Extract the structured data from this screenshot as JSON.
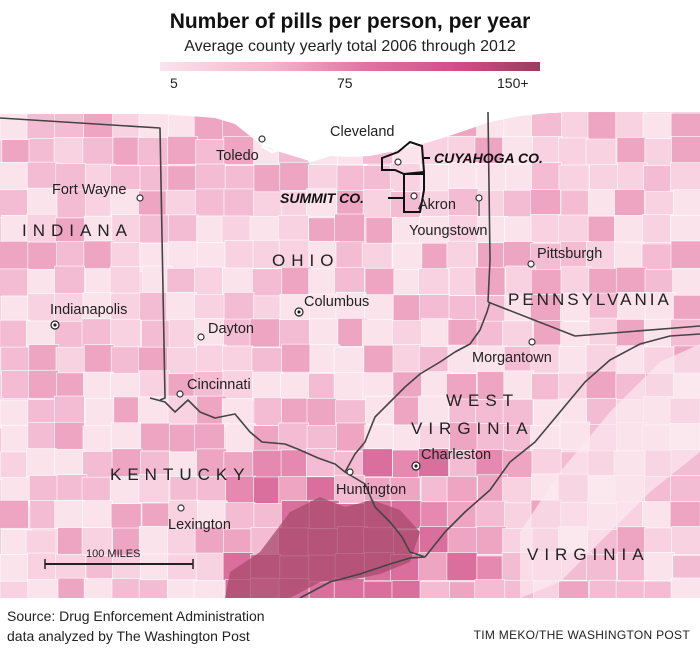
{
  "header": {
    "title": "Number of pills per person, per year",
    "subtitle": "Average county yearly total 2006 through 2012"
  },
  "legend": {
    "min_label": "5",
    "mid_label": "75",
    "max_label": "150+",
    "colors": [
      "#fbe3ec",
      "#f4b3c9",
      "#e270a2",
      "#cc4d86",
      "#9c3b5c"
    ]
  },
  "map": {
    "states": [
      "INDIANA",
      "OHIO",
      "PENNSYLVANIA",
      "WEST",
      "VIRGINIA",
      "KENTUCKY",
      "VIRGINIA"
    ],
    "cities": [
      "Toledo",
      "Cleveland",
      "Fort Wayne",
      "Akron",
      "Youngstown",
      "Pittsburgh",
      "Indianapolis",
      "Columbus",
      "Dayton",
      "Morgantown",
      "Cincinnati",
      "Charleston",
      "Huntington",
      "Lexington"
    ],
    "highlighted_counties": [
      "CUYAHOGA CO.",
      "SUMMIT CO."
    ],
    "scale_bar": "100 MILES",
    "land_color": "#f5cadc",
    "lake_color": "#ffffff",
    "border_color": "#444444"
  },
  "footer": {
    "source_line1": "Source: Drug Enforcement Administration",
    "source_line2": "data analyzed by The Washington Post",
    "credit": "TIM MEKO/THE WASHINGTON POST"
  }
}
